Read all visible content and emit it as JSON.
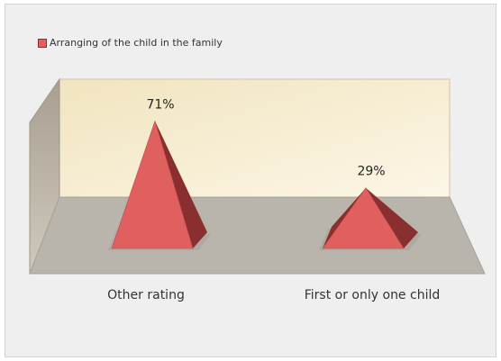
{
  "chart_data": {
    "type": "bar",
    "shape": "3d-pyramid",
    "title": "",
    "xlabel": "",
    "ylabel": "",
    "categories": [
      "Other rating",
      "First or only one child"
    ],
    "series": [
      {
        "name": "Arranging of the child in the family",
        "values": [
          71,
          29
        ],
        "labels": [
          "71%",
          "29%"
        ]
      }
    ],
    "ylim": [
      0,
      100
    ],
    "unit": "%",
    "grid": false,
    "legend_position": "top-left",
    "colors": {
      "series_fill": "#e06060",
      "series_shade": "#8a2f2f",
      "back_wall": "#f6eacb",
      "side_wall": "#bdb5a6",
      "floor": "#bab5ac",
      "background": "#efefef"
    }
  }
}
